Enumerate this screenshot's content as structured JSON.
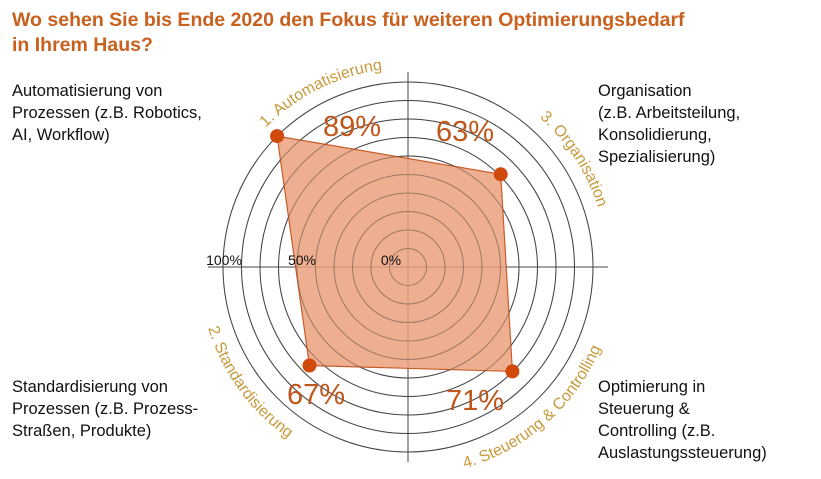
{
  "title": {
    "line1": "Wo sehen Sie bis Ende 2020 den Fokus für weiteren Optimierungsbedarf",
    "line2": "in Ihrem Haus?"
  },
  "descriptions": {
    "d1": [
      "Automatisierung von",
      "Prozessen (z.B. Robotics,",
      "AI, Workflow)"
    ],
    "d3": [
      "Organisation",
      "(z.B. Arbeitsteilung,",
      "Konsolidierung,",
      "Spezialisierung)"
    ],
    "d2": [
      "Standardisierung von",
      "Prozessen (z.B. Prozess-",
      "Straßen, Produkte)"
    ],
    "d4": [
      "Optimierung in",
      "Steuerung &",
      "Controlling (z.B.",
      "Auslastungssteuerung)"
    ]
  },
  "chart_data": {
    "type": "radar",
    "axes": [
      {
        "id": "1",
        "label": "1. Automatisierung",
        "value": 89,
        "value_label": "89%",
        "direction": "top-left"
      },
      {
        "id": "3",
        "label": "3. Organisation",
        "value": 63,
        "value_label": "63%",
        "direction": "top-right"
      },
      {
        "id": "4",
        "label": "4. Steuerung & Controlling",
        "value": 71,
        "value_label": "71%",
        "direction": "bottom-right"
      },
      {
        "id": "2",
        "label": "2. Standardisierung",
        "value": 67,
        "value_label": "67%",
        "direction": "bottom-left"
      }
    ],
    "scale_labels": [
      "100%",
      "50%",
      "0%"
    ],
    "range": [
      0,
      100
    ],
    "ring_count": 10,
    "colors": {
      "fill": "#eba17c",
      "stroke": "#c85c28",
      "marker": "#d04a0c",
      "grid": "#444444",
      "value_text": "#c0561a",
      "axis_label": "#c89a3c",
      "title": "#c8601e"
    }
  }
}
